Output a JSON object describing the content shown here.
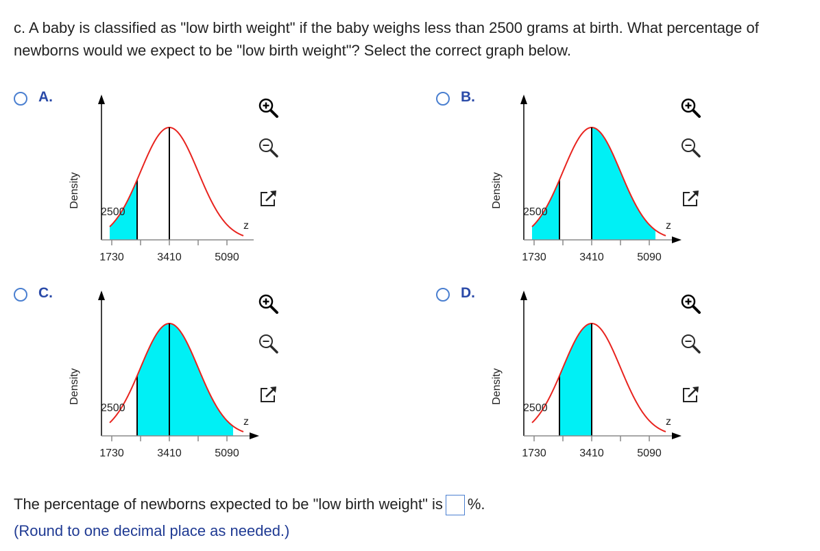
{
  "question": {
    "text": "c. A baby is classified as \"low birth weight\" if the baby weighs less than 2500 grams at birth. What percentage of newborns would we expect to be \"low birth weight\"? Select the correct graph below."
  },
  "options": [
    {
      "letter": "A.",
      "ylabel": "Density",
      "xlabel": "z",
      "marker": "2500",
      "ticks": [
        "1730",
        "3410",
        "5090"
      ],
      "shaded": "left of 2500"
    },
    {
      "letter": "B.",
      "ylabel": "Density",
      "xlabel": "z",
      "marker": "2500",
      "ticks": [
        "1730",
        "3410",
        "5090"
      ],
      "shaded": "left of 2500 and right of 3410"
    },
    {
      "letter": "C.",
      "ylabel": "Density",
      "xlabel": "z",
      "marker": "2500",
      "ticks": [
        "1730",
        "3410",
        "5090"
      ],
      "shaded": "right of 2500"
    },
    {
      "letter": "D.",
      "ylabel": "Density",
      "xlabel": "z",
      "marker": "2500",
      "ticks": [
        "1730",
        "3410",
        "5090"
      ],
      "shaded": "between 2500 and 3410"
    }
  ],
  "tools": [
    "zoom-in-icon",
    "zoom-out-icon",
    "popout-icon"
  ],
  "answer": {
    "prefix": "The percentage of newborns expected to be \"low birth weight\" is",
    "value": "",
    "suffix": "%."
  },
  "note": "(Round to one decimal place as needed.)",
  "colors": {
    "curve": "#e8231e",
    "fill": "#00f0f5",
    "link": "#2a4aa8",
    "radio": "#4a7fd0"
  }
}
